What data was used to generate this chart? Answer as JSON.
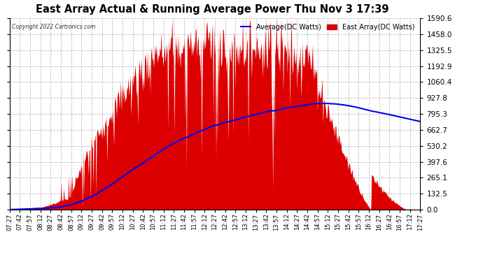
{
  "title": "East Array Actual & Running Average Power Thu Nov 3 17:39",
  "copyright": "Copyright 2022 Cartronics.com",
  "legend_avg": "Average(DC Watts)",
  "legend_east": "East Array(DC Watts)",
  "y_ticks": [
    0.0,
    132.5,
    265.1,
    397.6,
    530.2,
    662.7,
    795.3,
    927.8,
    1060.4,
    1192.9,
    1325.5,
    1458.0,
    1590.6
  ],
  "ymax": 1590.6,
  "ymin": 0.0,
  "bg_color": "#ffffff",
  "grid_color": "#bbbbbb",
  "fill_color": "#dd0000",
  "avg_line_color": "#0000ee",
  "title_color": "#000000",
  "copyright_color": "#333333",
  "x_tick_labels": [
    "07:27",
    "07:42",
    "07:57",
    "08:12",
    "08:27",
    "08:42",
    "08:57",
    "09:12",
    "09:27",
    "09:42",
    "09:57",
    "10:12",
    "10:27",
    "10:42",
    "10:57",
    "11:12",
    "11:27",
    "11:42",
    "11:57",
    "12:12",
    "12:27",
    "12:42",
    "12:57",
    "13:12",
    "13:27",
    "13:42",
    "13:57",
    "14:12",
    "14:27",
    "14:42",
    "14:57",
    "15:12",
    "15:27",
    "15:42",
    "15:57",
    "16:12",
    "16:27",
    "16:42",
    "16:57",
    "17:12",
    "17:27"
  ],
  "avg_line_color_legend": "#0000ee",
  "east_legend_color": "#dd0000"
}
